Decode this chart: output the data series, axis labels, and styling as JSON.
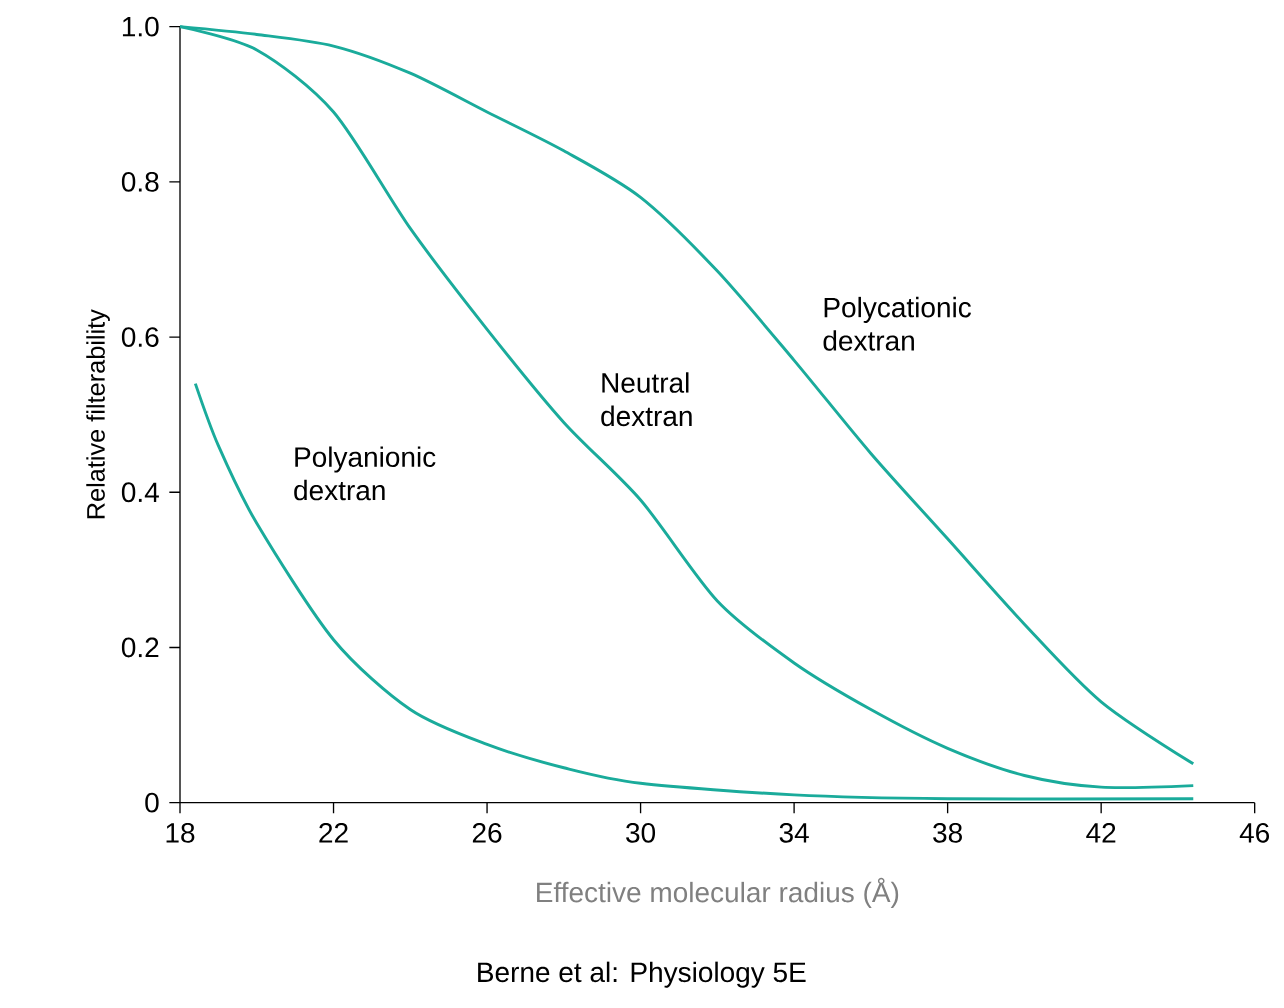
{
  "chart_data": {
    "type": "line",
    "xlabel": "Effective molecular radius (Å)",
    "ylabel": "Relative filterability",
    "xlim": [
      18,
      46
    ],
    "xticks": [
      18,
      22,
      26,
      30,
      34,
      38,
      42,
      46
    ],
    "ylim": [
      0,
      1
    ],
    "yticks": [
      0,
      {
        "value": 0.2,
        "label": "0.2"
      },
      {
        "value": 0.4,
        "label": "0.4"
      },
      {
        "value": 0.6,
        "label": "0.6"
      },
      {
        "value": 0.8,
        "label": "0.8"
      },
      {
        "value": 1,
        "label": "1.0"
      }
    ],
    "grid": false,
    "marker": "none",
    "line_style": "solid",
    "series": [
      {
        "name": "Polycationic dextran",
        "color": "#1aab9b",
        "x": [
          18,
          20,
          22,
          24,
          26,
          28,
          30,
          32,
          34,
          36,
          38,
          40,
          42,
          44.4
        ],
        "values": [
          1.0,
          0.99,
          0.975,
          0.94,
          0.89,
          0.84,
          0.78,
          0.685,
          0.57,
          0.45,
          0.34,
          0.23,
          0.13,
          0.05
        ]
      },
      {
        "name": "Neutral dextran",
        "color": "#1aab9b",
        "x": [
          18,
          20,
          22,
          24,
          26,
          28,
          30,
          32,
          34,
          36,
          38,
          40,
          42,
          44.4
        ],
        "values": [
          1.0,
          0.97,
          0.89,
          0.74,
          0.61,
          0.49,
          0.39,
          0.26,
          0.18,
          0.12,
          0.07,
          0.035,
          0.02,
          0.022
        ]
      },
      {
        "name": "Polyanionic dextran",
        "color": "#1aab9b",
        "x": [
          18.4,
          19,
          20,
          22,
          24,
          26,
          28,
          30,
          34,
          38,
          44.4
        ],
        "values": [
          0.54,
          0.46,
          0.36,
          0.21,
          0.12,
          0.075,
          0.045,
          0.025,
          0.01,
          0.005,
          0.005
        ]
      }
    ],
    "annotations": [
      "Berne et al: Physiology 5E"
    ]
  }
}
